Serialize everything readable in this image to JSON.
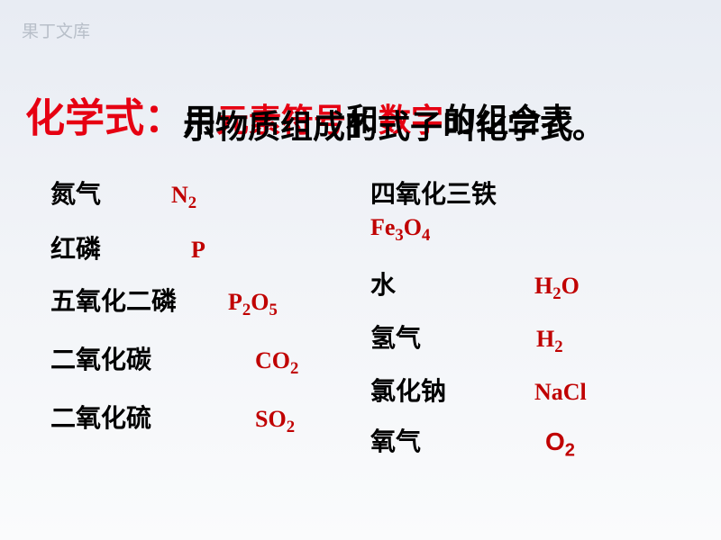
{
  "watermark": "果丁文库",
  "title": {
    "label": "化学式：",
    "definition_line1_pre": "用",
    "definition_line1_h1": "元素符号",
    "definition_line1_mid": "和",
    "definition_line1_h2": "数字",
    "definition_line1_post": "的组合表",
    "definition_line2": "示物质组成的式子叫化学式。"
  },
  "left_column": [
    {
      "name": "氮气",
      "formula_html": "N<sub>2</sub>",
      "name_w": 82,
      "formula_ml": 52
    },
    {
      "name": "红磷",
      "formula_html": "P",
      "name_w": 82,
      "formula_ml": 74
    },
    {
      "name": "五氧化二磷",
      "formula_html": "P<sub>2</sub>O<sub>5</sub>",
      "name_w": 155,
      "formula_ml": 42
    },
    {
      "name": "二氧化碳",
      "formula_html": "CO<sub>2</sub>",
      "name_w": 155,
      "formula_ml": 72
    },
    {
      "name": "二氧化硫",
      "formula_html": "SO<sub>2</sub>",
      "name_w": 155,
      "formula_ml": 72
    }
  ],
  "right_column": {
    "fe3o4_name": "四氧化三铁",
    "fe3o4_formula_html": "Fe<sub>3</sub>O<sub>4</sub>",
    "items": [
      {
        "name": "水",
        "formula_html": "H<sub>2</sub>O",
        "name_w": 62,
        "formula_ml": 120
      },
      {
        "name": "氢气",
        "formula_html": "H<sub>2</sub>",
        "name_w": 62,
        "formula_ml": 122
      },
      {
        "name": "氯化钠",
        "formula_html": "NaCl",
        "name_w": 90,
        "formula_ml": 92
      },
      {
        "name": "氧气",
        "formula_html": "O<sub>2</sub>",
        "name_w": 62,
        "formula_ml": 132,
        "is_o2": true
      }
    ]
  },
  "colors": {
    "red": "#e60012",
    "formula_red": "#c00000",
    "text": "#000000",
    "watermark": "#b8bfc9"
  }
}
